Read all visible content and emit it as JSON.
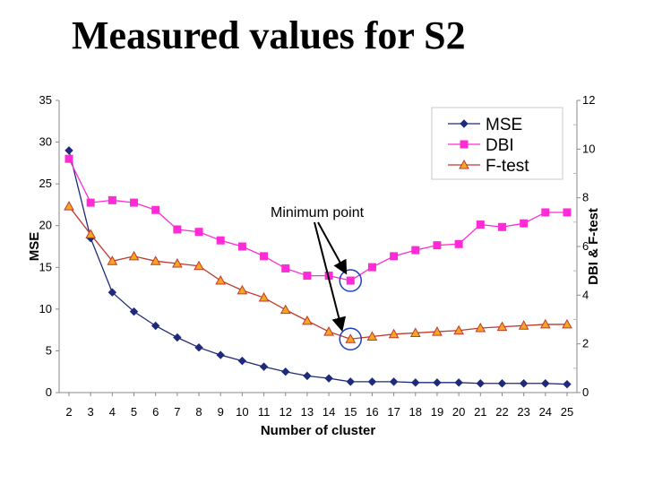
{
  "slide": {
    "title": "Measured values for S2"
  },
  "colors": {
    "mse": "#1f2a7a",
    "dbi": "#ff2bd6",
    "ftest": "#c0392b",
    "ftest_fill": "#f5a623",
    "highlight": "#1f3fbf"
  },
  "chart_data": {
    "type": "line",
    "title": "",
    "xlabel": "Number of cluster",
    "ylabel": "MSE",
    "y2label": "DBI & F-test",
    "x": [
      2,
      3,
      4,
      5,
      6,
      7,
      8,
      9,
      10,
      11,
      12,
      13,
      14,
      15,
      16,
      17,
      18,
      19,
      20,
      21,
      22,
      23,
      24,
      25
    ],
    "x_ticks": [
      "2",
      "3",
      "4",
      "5",
      "6",
      "7",
      "8",
      "9",
      "10",
      "11",
      "12",
      "13",
      "14",
      "15",
      "16",
      "17",
      "18",
      "19",
      "20",
      "21",
      "22",
      "23",
      "24",
      "25"
    ],
    "ylim": [
      0,
      35
    ],
    "y_ticks": [
      "0",
      "5",
      "10",
      "15",
      "20",
      "25",
      "30",
      "35"
    ],
    "y2lim": [
      0,
      12
    ],
    "y2_ticks": [
      "0",
      "2",
      "4",
      "6",
      "8",
      "10",
      "12"
    ],
    "legend": {
      "position": "top-right",
      "entries": [
        "MSE",
        "DBI",
        "F-test"
      ]
    },
    "series": [
      {
        "name": "MSE",
        "axis": "left",
        "marker": "diamond",
        "values": [
          29,
          18.5,
          12,
          9.7,
          8,
          6.6,
          5.4,
          4.5,
          3.8,
          3.1,
          2.5,
          2,
          1.7,
          1.3,
          1.3,
          1.3,
          1.2,
          1.2,
          1.2,
          1.1,
          1.1,
          1.1,
          1.1,
          1.0
        ]
      },
      {
        "name": "DBI",
        "axis": "right",
        "marker": "square",
        "values": [
          9.6,
          7.8,
          7.9,
          7.8,
          7.5,
          6.7,
          6.6,
          6.25,
          6.0,
          5.6,
          5.1,
          4.8,
          4.8,
          4.6,
          5.15,
          5.6,
          5.85,
          6.05,
          6.1,
          6.9,
          6.8,
          6.95,
          7.4,
          7.4
        ]
      },
      {
        "name": "F-test",
        "axis": "right",
        "marker": "triangle",
        "values": [
          7.65,
          6.5,
          5.4,
          5.6,
          5.4,
          5.3,
          5.2,
          4.6,
          4.2,
          3.9,
          3.4,
          2.95,
          2.5,
          2.2,
          2.3,
          2.4,
          2.45,
          2.5,
          2.55,
          2.65,
          2.7,
          2.75,
          2.8,
          2.8
        ]
      }
    ],
    "annotations": [
      {
        "text": "Minimum point",
        "target_x": 15
      }
    ]
  }
}
